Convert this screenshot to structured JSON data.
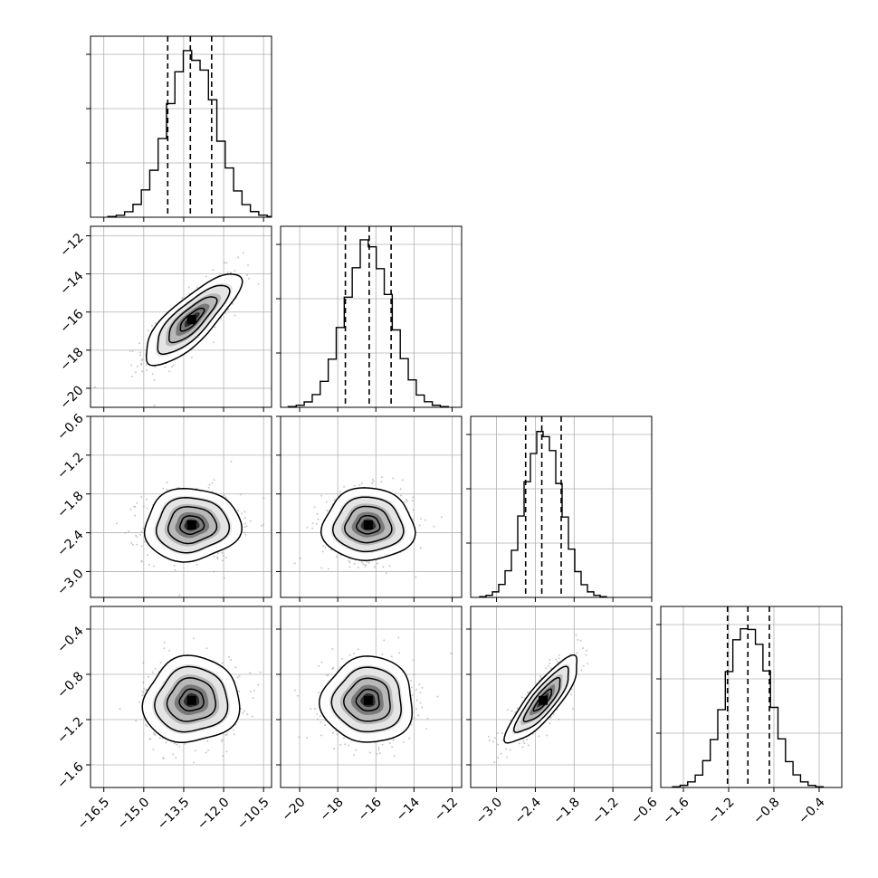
{
  "chart_data": {
    "type": "corner",
    "grid": true,
    "parameters": [
      {
        "range": [
          -17,
          -10.2
        ],
        "ticks": [
          -16.5,
          -15.0,
          -13.5,
          -12.0,
          -10.5
        ],
        "tick_labels": [
          "−16.5",
          "−15.0",
          "−13.5",
          "−12.0",
          "−10.5"
        ],
        "quantiles": [
          -14.1,
          -13.25,
          -12.45
        ],
        "mean": -13.2,
        "std": 0.9
      },
      {
        "range": [
          -21,
          -11.5
        ],
        "ticks": [
          -20,
          -18,
          -16,
          -14,
          -12
        ],
        "tick_labels": [
          "−20",
          "−18",
          "−16",
          "−14",
          "−12"
        ],
        "quantiles": [
          -17.6,
          -16.35,
          -15.2
        ],
        "mean": -16.4,
        "std": 1.2
      },
      {
        "range": [
          -3.4,
          -0.6
        ],
        "ticks": [
          -3.0,
          -2.4,
          -1.8,
          -1.2,
          -0.6
        ],
        "tick_labels": [
          "−3.0",
          "−2.4",
          "−1.8",
          "−1.2",
          "−0.6"
        ],
        "quantiles": [
          -2.55,
          -2.3,
          -2.0
        ],
        "mean": -2.28,
        "std": 0.28
      },
      {
        "range": [
          -1.8,
          -0.2
        ],
        "ticks": [
          -1.6,
          -1.2,
          -0.8,
          -0.4
        ],
        "tick_labels": [
          "−1.6",
          "−1.2",
          "−0.8",
          "−0.4"
        ],
        "quantiles": [
          -1.21,
          -1.03,
          -0.84
        ],
        "mean": -1.03,
        "std": 0.19
      }
    ],
    "y_axes": [
      {
        "row": 1,
        "ticks": [
          -20,
          -18,
          -16,
          -14,
          -12
        ],
        "tick_labels": [
          "−20",
          "−18",
          "−16",
          "−14",
          "−12"
        ]
      },
      {
        "row": 2,
        "ticks": [
          -3.0,
          -2.4,
          -1.8,
          -1.2,
          -0.6
        ],
        "tick_labels": [
          "−3.0",
          "−2.4",
          "−1.8",
          "−1.2",
          "−0.6"
        ]
      },
      {
        "row": 3,
        "ticks": [
          -1.6,
          -1.2,
          -0.8,
          -0.4
        ],
        "tick_labels": [
          "−1.6",
          "−1.2",
          "−0.8",
          "−0.4"
        ]
      }
    ],
    "pairs": [
      {
        "row": 1,
        "col": 0,
        "correlation": 0.8
      },
      {
        "row": 2,
        "col": 0,
        "correlation": 0.05
      },
      {
        "row": 2,
        "col": 1,
        "correlation": 0.0
      },
      {
        "row": 3,
        "col": 0,
        "correlation": 0.05
      },
      {
        "row": 3,
        "col": 1,
        "correlation": 0.0
      },
      {
        "row": 3,
        "col": 2,
        "correlation": 0.85
      }
    ],
    "colors": {
      "line": "#000000",
      "grid": "#b0b0b0",
      "points": "#9a9a9a"
    }
  }
}
